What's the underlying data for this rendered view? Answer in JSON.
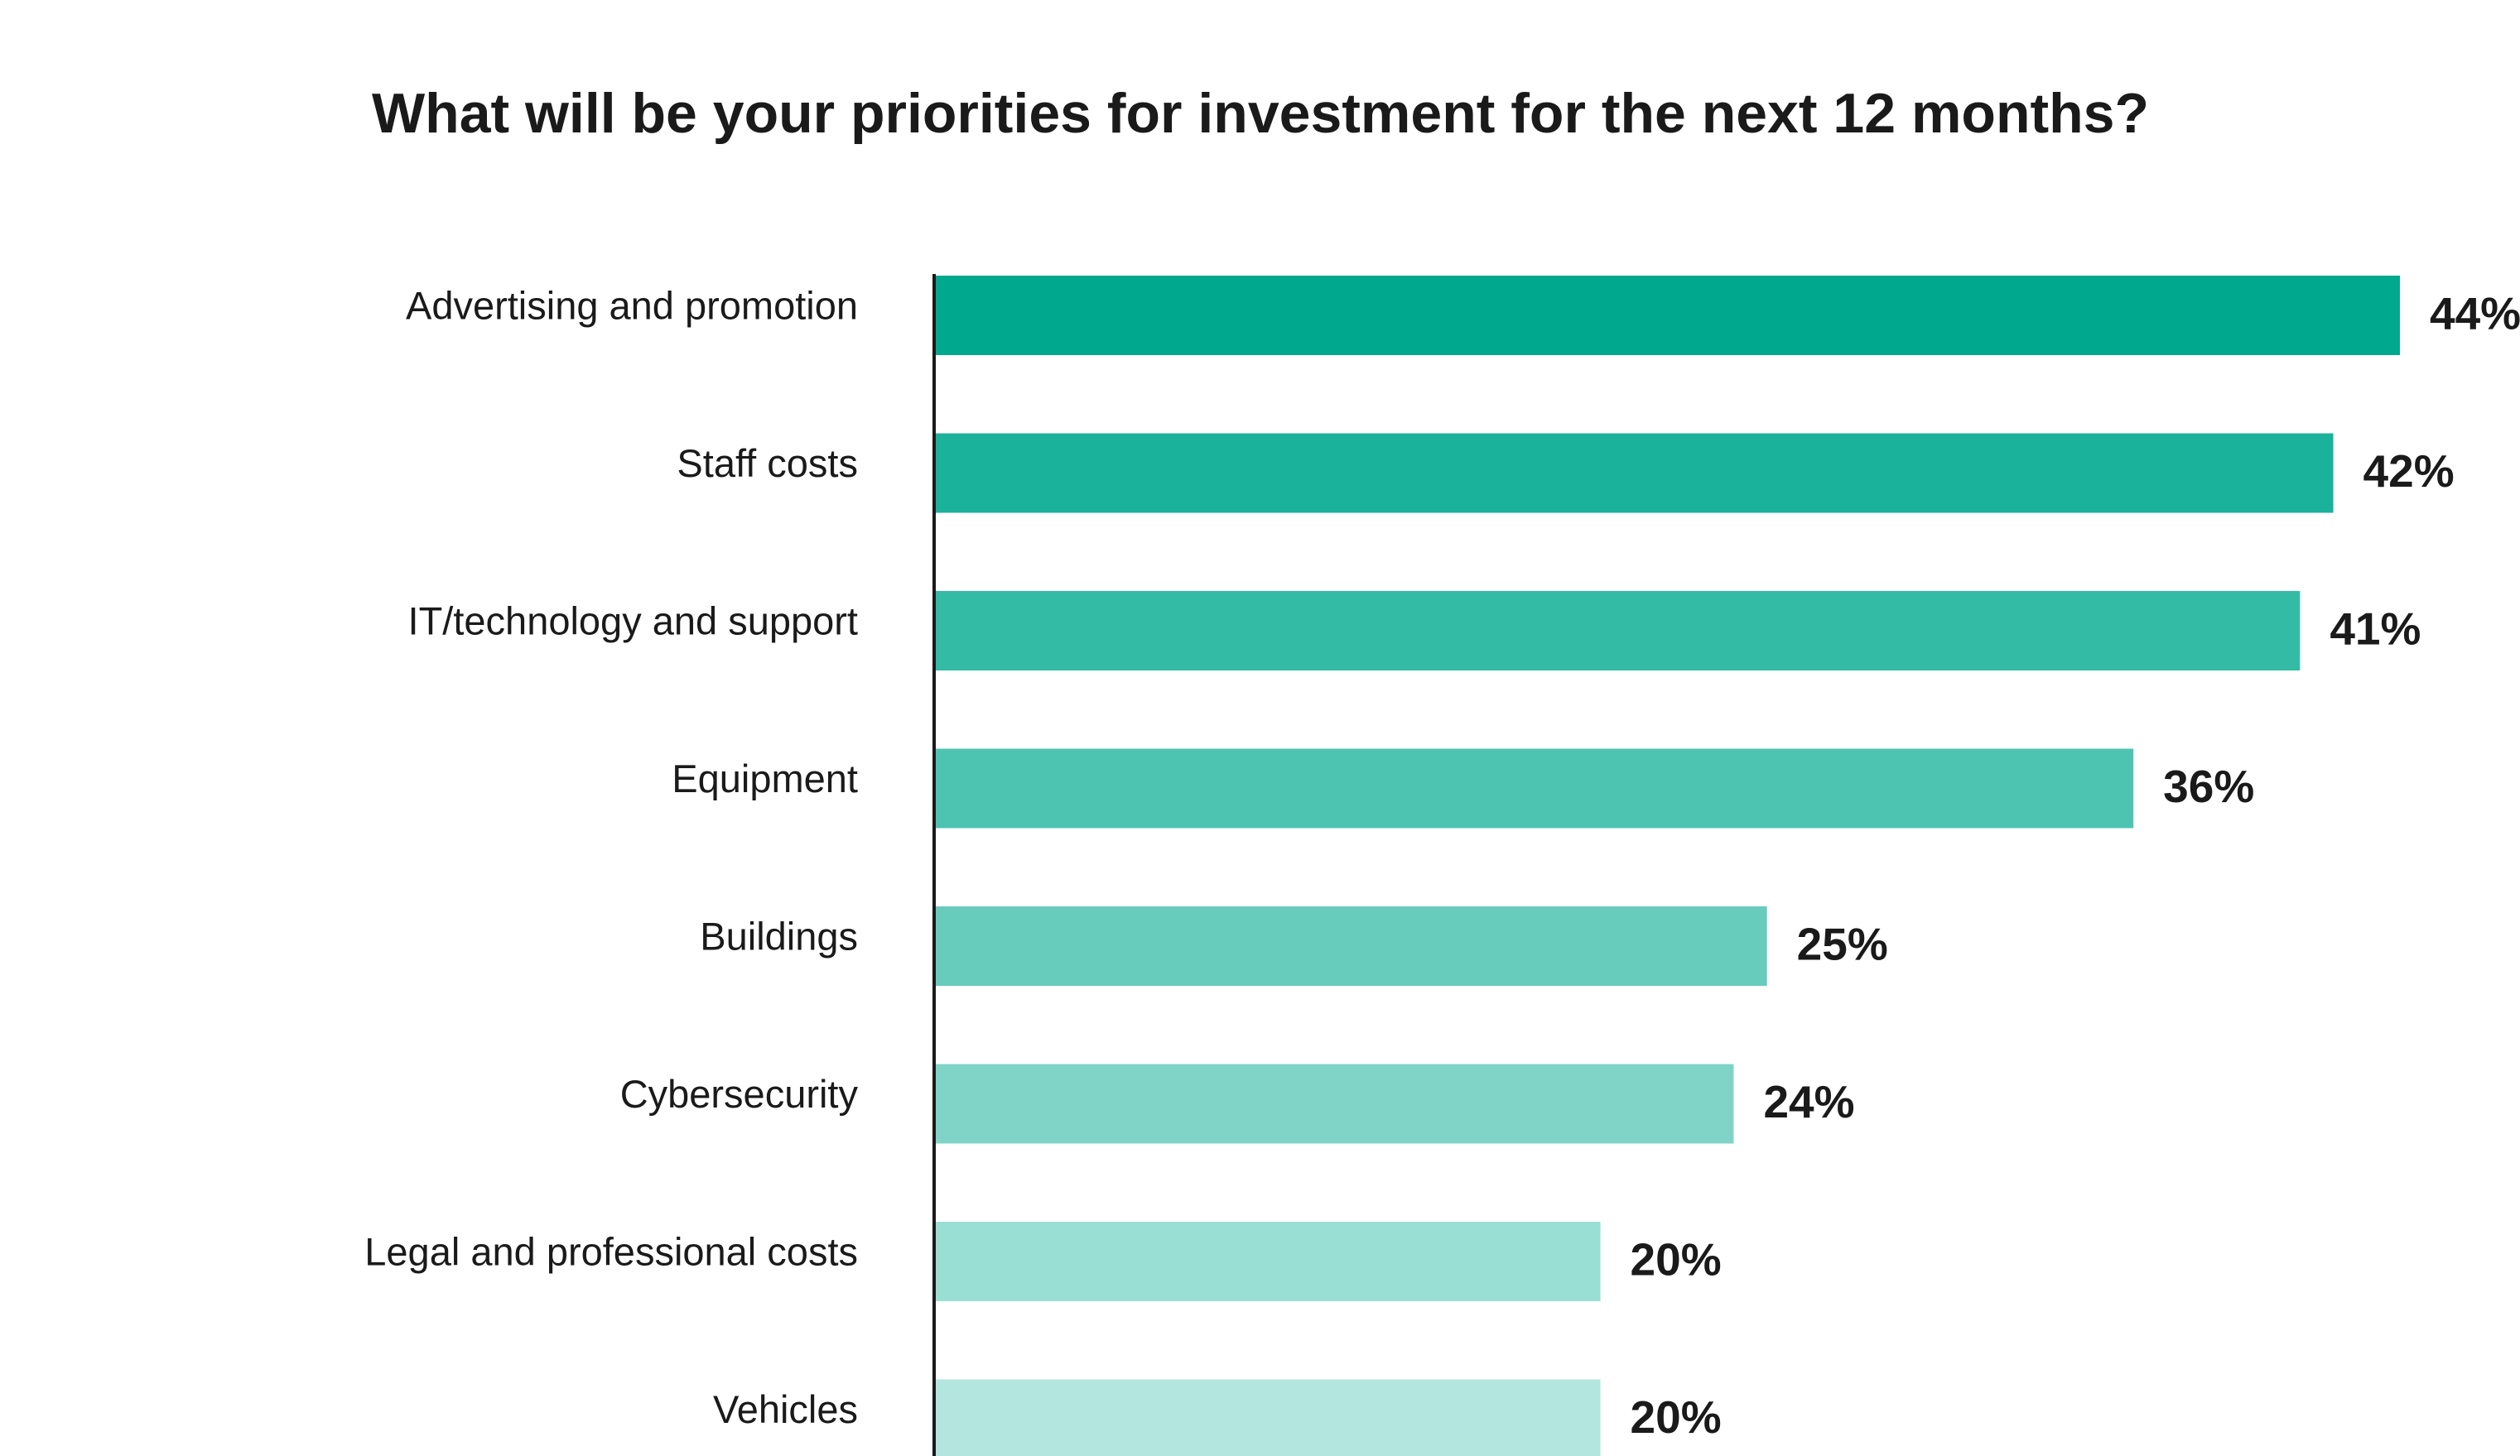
{
  "chart_data": {
    "type": "bar",
    "orientation": "horizontal",
    "title": "What will be your priorities for investment for the next 12 months?",
    "categories": [
      "Advertising and promotion",
      "Staff costs",
      "IT/technology and support",
      "Equipment",
      "Buildings",
      "Cybersecurity",
      "Legal and professional costs",
      "Vehicles"
    ],
    "values": [
      44,
      42,
      41,
      36,
      25,
      24,
      20,
      20
    ],
    "value_labels": [
      "44%",
      "42%",
      "41%",
      "36%",
      "25%",
      "24%",
      "20%",
      "20%"
    ],
    "colors": [
      "#00a88e",
      "#1ab29a",
      "#33bba6",
      "#4dc4b1",
      "#67ccbc",
      "#80d4c7",
      "#9adfd3",
      "#b3e6de"
    ],
    "xlim": [
      0,
      44
    ],
    "grid": false,
    "legend": "none"
  }
}
